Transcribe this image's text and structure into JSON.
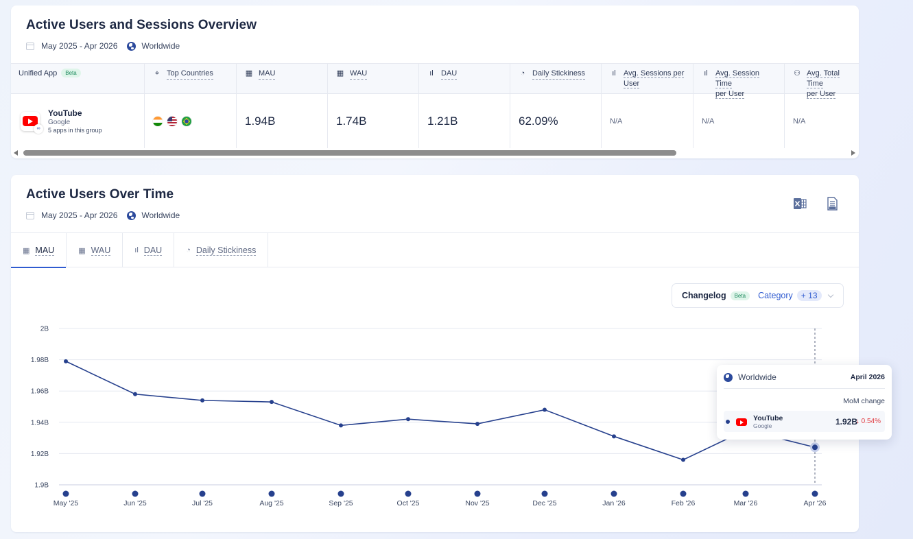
{
  "overview": {
    "title": "Active Users and Sessions Overview",
    "date_range": "May 2025 - Apr 2026",
    "region": "Worldwide",
    "columns": {
      "app": "Unified App",
      "beta": "Beta",
      "top_countries": "Top Countries",
      "mau": "MAU",
      "wau": "WAU",
      "dau": "DAU",
      "stickiness": "Daily Stickiness",
      "sessions_line1": "Avg. Sessions per",
      "sessions_line2": "User",
      "session_time_line1": "Avg. Session Time",
      "session_time_line2": "per User",
      "total_time_line1": "Avg. Total Time",
      "total_time_line2": "per User"
    },
    "row": {
      "app_name": "YouTube",
      "publisher": "Google",
      "group_note": "5 apps in this group",
      "countries": [
        "India",
        "United States",
        "Brazil"
      ],
      "mau": "1.94B",
      "wau": "1.74B",
      "dau": "1.21B",
      "stickiness": "62.09%",
      "sessions": "N/A",
      "session_time": "N/A",
      "total_time": "N/A"
    }
  },
  "over_time": {
    "title": "Active Users Over Time",
    "date_range": "May 2025 - Apr 2026",
    "region": "Worldwide",
    "export_icons": [
      "excel-export-icon",
      "csv-export-icon"
    ],
    "tabs": [
      {
        "label": "MAU",
        "icon": "calendar-icon",
        "active": true
      },
      {
        "label": "WAU",
        "icon": "calendar-week-icon",
        "active": false
      },
      {
        "label": "DAU",
        "icon": "bar-small-icon",
        "active": false
      },
      {
        "label": "Daily Stickiness",
        "icon": "magnet-icon",
        "active": false
      }
    ],
    "changelog": {
      "label": "Changelog",
      "beta": "Beta",
      "category": "Category",
      "count": "+ 13"
    },
    "tooltip": {
      "region": "Worldwide",
      "date": "April 2026",
      "header": "MoM change",
      "app": "YouTube",
      "publisher": "Google",
      "value": "1.92B",
      "change": "↓ 0.54%"
    }
  },
  "colors": {
    "line": "#26408d",
    "accent": "#2f5bd0",
    "negative": "#e0393e"
  },
  "chart_data": {
    "type": "line",
    "categories": [
      "May '25",
      "Jun '25",
      "Jul '25",
      "Aug '25",
      "Sep '25",
      "Oct '25",
      "Nov '25",
      "Dec '25",
      "Jan '26",
      "Feb '26",
      "Mar '26",
      "Apr '26"
    ],
    "series": [
      {
        "name": "YouTube",
        "values": [
          1.979,
          1.958,
          1.954,
          1.953,
          1.938,
          1.942,
          1.939,
          1.948,
          1.931,
          1.916,
          1.935,
          1.924
        ]
      }
    ],
    "y_ticks": [
      "1.9B",
      "1.92B",
      "1.94B",
      "1.96B",
      "1.98B",
      "2B"
    ],
    "ylim": [
      1.9,
      2.0
    ],
    "grid": true,
    "highlight_index": 11
  }
}
